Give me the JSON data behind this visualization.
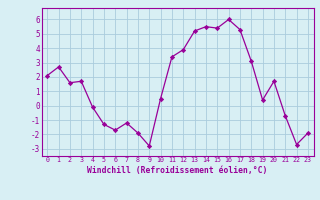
{
  "x": [
    0,
    1,
    2,
    3,
    4,
    5,
    6,
    7,
    8,
    9,
    10,
    11,
    12,
    13,
    14,
    15,
    16,
    17,
    18,
    19,
    20,
    21,
    22,
    23
  ],
  "y": [
    2.1,
    2.7,
    1.6,
    1.7,
    -0.1,
    -1.3,
    -1.7,
    -1.2,
    -1.9,
    -2.8,
    0.5,
    3.4,
    3.9,
    5.2,
    5.5,
    5.4,
    6.0,
    5.3,
    3.1,
    0.4,
    1.7,
    -0.7,
    -2.7,
    -1.9
  ],
  "line_color": "#990099",
  "marker": "D",
  "marker_size": 2.2,
  "bg_color": "#d8eff4",
  "grid_color": "#aaccdd",
  "xlabel": "Windchill (Refroidissement éolien,°C)",
  "ylim": [
    -3.5,
    6.8
  ],
  "xlim": [
    -0.5,
    23.5
  ],
  "yticks": [
    -3,
    -2,
    -1,
    0,
    1,
    2,
    3,
    4,
    5,
    6
  ],
  "xticks": [
    0,
    1,
    2,
    3,
    4,
    5,
    6,
    7,
    8,
    9,
    10,
    11,
    12,
    13,
    14,
    15,
    16,
    17,
    18,
    19,
    20,
    21,
    22,
    23
  ],
  "tick_color": "#990099",
  "label_color": "#990099",
  "spine_color": "#990099"
}
